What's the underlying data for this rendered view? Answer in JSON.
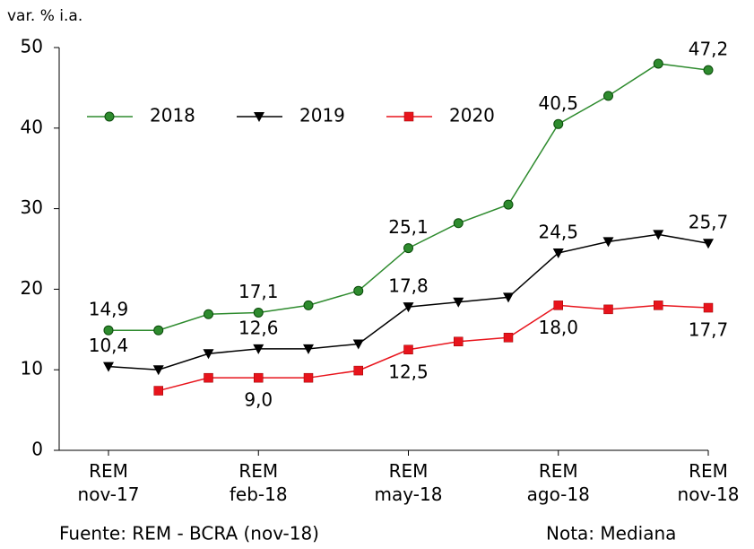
{
  "chart_data": {
    "type": "line",
    "y_label": "var. % i.a.",
    "source": "Fuente: REM - BCRA (nov-18)",
    "note": "Nota: Mediana",
    "categories": [
      [
        "REM",
        "nov-17"
      ],
      null,
      null,
      [
        "REM",
        "feb-18"
      ],
      null,
      null,
      [
        "REM",
        "may-18"
      ],
      null,
      null,
      [
        "REM",
        "ago-18"
      ],
      null,
      null,
      [
        "REM",
        "nov-18"
      ]
    ],
    "ylim": [
      0,
      50
    ],
    "yticks": [
      0,
      10,
      20,
      30,
      40,
      50
    ],
    "grid": false,
    "legend": "top-left",
    "series": [
      {
        "name": "2018",
        "color": "#2e8b2e",
        "marker": "circle",
        "label_position": "above",
        "values": [
          14.9,
          14.9,
          16.9,
          17.1,
          18.0,
          19.8,
          25.1,
          28.2,
          30.5,
          40.5,
          44.0,
          48.0,
          47.2
        ],
        "value_labels": [
          "14,9",
          null,
          null,
          "17,1",
          null,
          null,
          "25,1",
          null,
          null,
          "40,5",
          null,
          null,
          "47,2"
        ]
      },
      {
        "name": "2019",
        "color": "#000000",
        "marker": "triangle-down",
        "label_position": "above",
        "values": [
          10.4,
          10.0,
          12.0,
          12.6,
          12.6,
          13.2,
          17.8,
          18.4,
          19.0,
          24.5,
          25.9,
          26.8,
          25.7
        ],
        "value_labels": [
          "10,4",
          null,
          null,
          "12,6",
          null,
          null,
          "17,8",
          null,
          null,
          "24,5",
          null,
          null,
          "25,7"
        ]
      },
      {
        "name": "2020",
        "color": "#e8141c",
        "marker": "square",
        "label_position": "below",
        "values": [
          null,
          7.4,
          9.0,
          9.0,
          9.0,
          9.9,
          12.5,
          13.5,
          14.0,
          18.0,
          17.5,
          18.0,
          17.7
        ],
        "value_labels": [
          null,
          null,
          null,
          "9,0",
          null,
          null,
          "12,5",
          null,
          null,
          "18,0",
          null,
          null,
          "17,7"
        ]
      }
    ]
  }
}
